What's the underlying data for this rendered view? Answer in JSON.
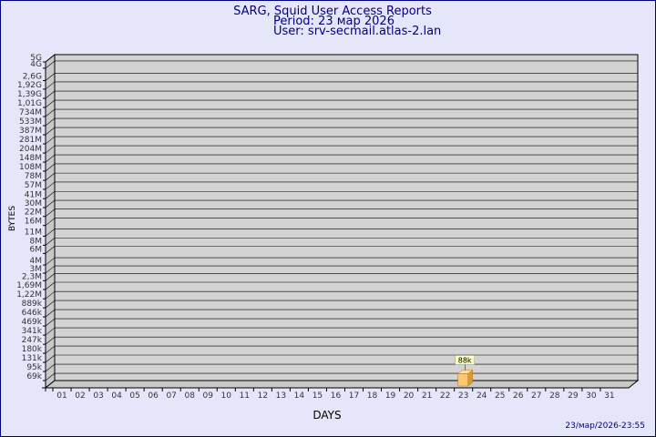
{
  "chart_data": {
    "type": "bar",
    "title": "SARG, Squid User Access Reports",
    "period": "Period: 23 мар 2026",
    "user": "User: srv-secmail.atlas-2.lan",
    "x_label": "DAYS",
    "y_label": "BYTES",
    "footer": "23/мар/2026-23:55",
    "categories": [
      "01",
      "02",
      "03",
      "04",
      "05",
      "06",
      "07",
      "08",
      "09",
      "10",
      "11",
      "12",
      "13",
      "14",
      "15",
      "16",
      "17",
      "18",
      "19",
      "20",
      "21",
      "22",
      "23",
      "24",
      "25",
      "26",
      "27",
      "28",
      "29",
      "30",
      "31"
    ],
    "values": [
      null,
      null,
      null,
      null,
      null,
      null,
      null,
      null,
      null,
      null,
      null,
      null,
      null,
      null,
      null,
      null,
      null,
      null,
      null,
      null,
      null,
      null,
      88000,
      null,
      null,
      null,
      null,
      null,
      null,
      null,
      null
    ],
    "value_labels": [
      null,
      null,
      null,
      null,
      null,
      null,
      null,
      null,
      null,
      null,
      null,
      null,
      null,
      null,
      null,
      null,
      null,
      null,
      null,
      null,
      null,
      null,
      "88k",
      null,
      null,
      null,
      null,
      null,
      null,
      null,
      null
    ],
    "color": "#ffc870",
    "log_scale": true,
    "grid": true,
    "ylim": [
      53500,
      5000000000
    ],
    "yticks": [
      {
        "value": 69000,
        "label": "69k"
      },
      {
        "value": 95000,
        "label": "95k"
      },
      {
        "value": 131000,
        "label": "131k"
      },
      {
        "value": 180000,
        "label": "180k"
      },
      {
        "value": 247000,
        "label": "247k"
      },
      {
        "value": 341000,
        "label": "341k"
      },
      {
        "value": 469000,
        "label": "469k"
      },
      {
        "value": 646000,
        "label": "646k"
      },
      {
        "value": 889000,
        "label": "889k"
      },
      {
        "value": 1220000,
        "label": "1,22M"
      },
      {
        "value": 1690000,
        "label": "1,69M"
      },
      {
        "value": 2300000,
        "label": "2,3M"
      },
      {
        "value": 3000000,
        "label": "3M"
      },
      {
        "value": 4000000,
        "label": "4M"
      },
      {
        "value": 6000000,
        "label": "6M"
      },
      {
        "value": 8000000,
        "label": "8M"
      },
      {
        "value": 11000000,
        "label": "11M"
      },
      {
        "value": 16000000,
        "label": "16M"
      },
      {
        "value": 22000000,
        "label": "22M"
      },
      {
        "value": 30000000,
        "label": "30M"
      },
      {
        "value": 41000000,
        "label": "41M"
      },
      {
        "value": 57000000,
        "label": "57M"
      },
      {
        "value": 78000000,
        "label": "78M"
      },
      {
        "value": 108000000,
        "label": "108M"
      },
      {
        "value": 148000000,
        "label": "148M"
      },
      {
        "value": 204000000,
        "label": "204M"
      },
      {
        "value": 281000000,
        "label": "281M"
      },
      {
        "value": 387000000,
        "label": "387M"
      },
      {
        "value": 533000000,
        "label": "533M"
      },
      {
        "value": 734000000,
        "label": "734M"
      },
      {
        "value": 1010000000,
        "label": "1,01G"
      },
      {
        "value": 1390000000,
        "label": "1,39G"
      },
      {
        "value": 1920000000,
        "label": "1,92G"
      },
      {
        "value": 2600000000,
        "label": "2,6G"
      },
      {
        "value": 4000000000,
        "label": "4G"
      },
      {
        "value": 5000000000,
        "label": "5G"
      }
    ]
  }
}
